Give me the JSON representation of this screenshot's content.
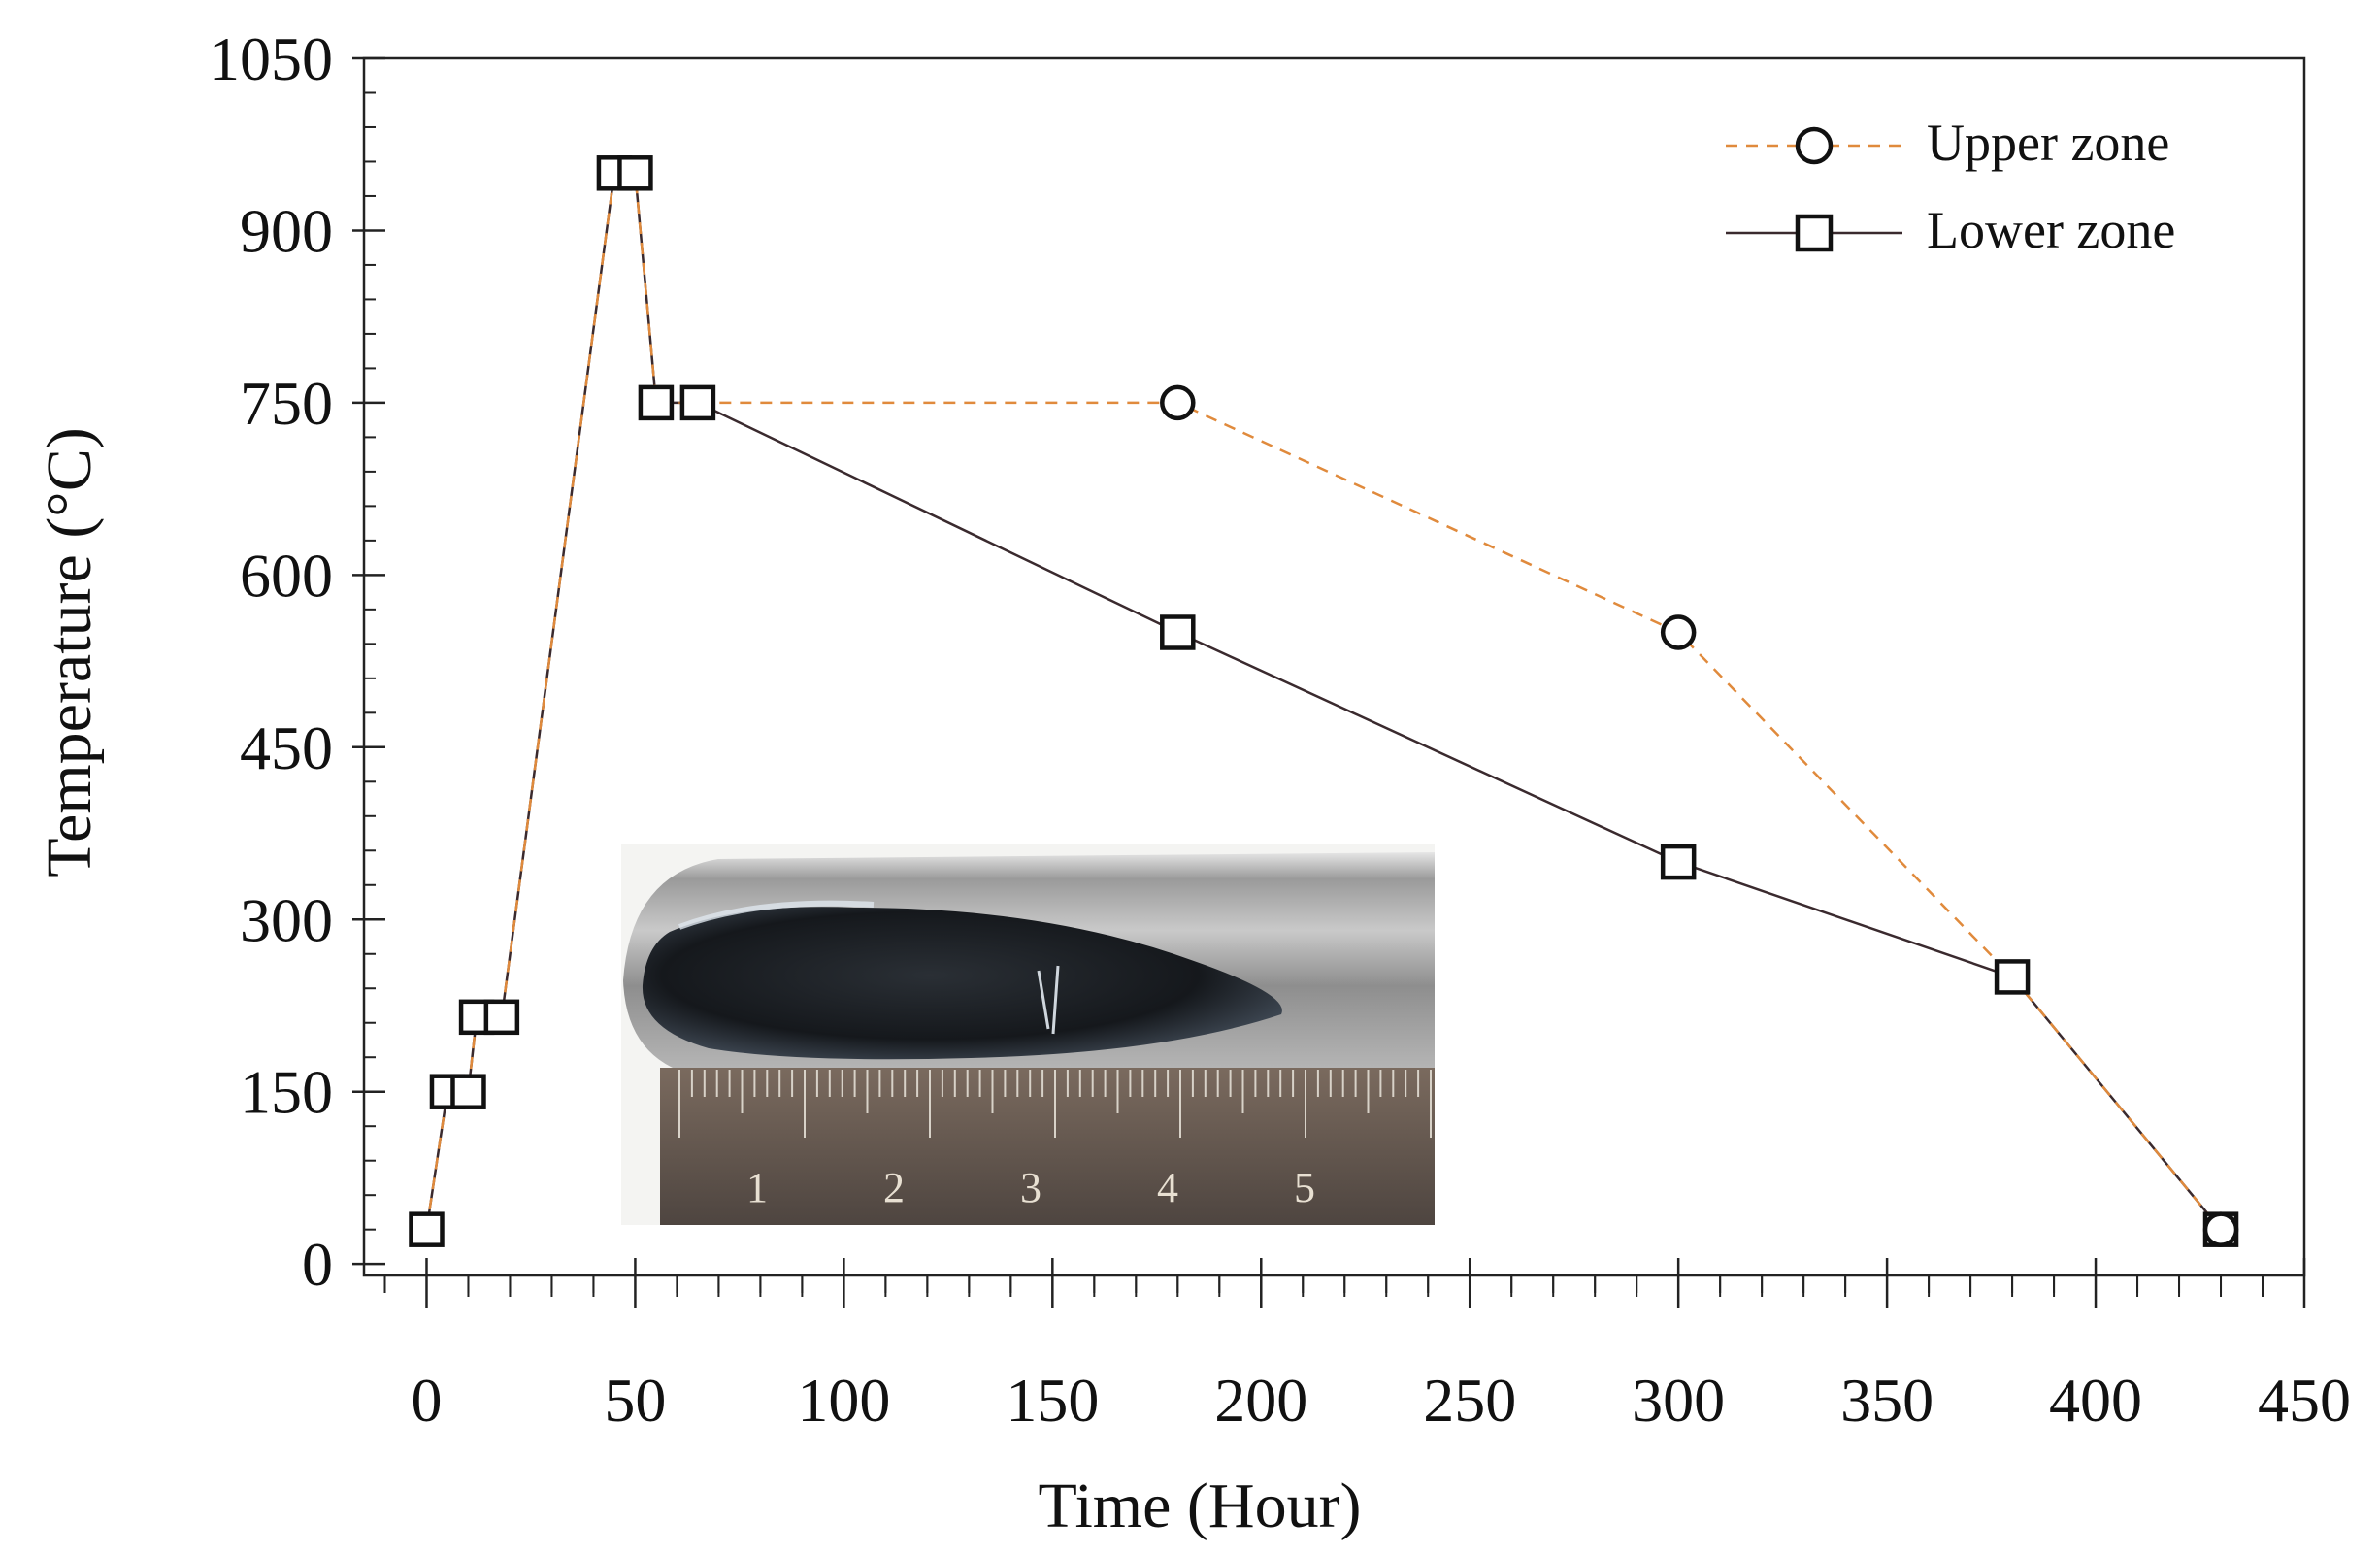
{
  "chart_data": {
    "type": "line",
    "xlabel": "Time (Hour)",
    "ylabel": "Temperature (°C)",
    "xlim": [
      -15,
      450
    ],
    "ylim": [
      -10,
      1050
    ],
    "xticks": [
      0,
      50,
      100,
      150,
      200,
      250,
      300,
      350,
      400,
      450
    ],
    "yticks": [
      0,
      150,
      300,
      450,
      600,
      750,
      900,
      1050
    ],
    "xtick_labels": [
      "0",
      "50",
      "100",
      "150",
      "200",
      "250",
      "300",
      "350",
      "400",
      "450"
    ],
    "ytick_labels": [
      "0",
      "150",
      "300",
      "450",
      "600",
      "750",
      "900",
      "1050"
    ],
    "legend_position": "top-right",
    "series": [
      {
        "name": "Upper zone",
        "color": "#e08a3c",
        "line_style": "dashed",
        "marker": "circle",
        "points": [
          [
            0,
            30
          ],
          [
            5,
            150
          ],
          [
            10,
            150
          ],
          [
            12,
            215
          ],
          [
            18,
            215
          ],
          [
            45,
            950
          ],
          [
            50,
            950
          ],
          [
            55,
            750
          ],
          [
            65,
            750
          ],
          [
            180,
            750
          ],
          [
            300,
            550
          ],
          [
            380,
            250
          ],
          [
            430,
            30
          ]
        ],
        "marked_indices": [
          9,
          10,
          12
        ]
      },
      {
        "name": "Lower zone",
        "color": "#3a2a2e",
        "line_style": "solid",
        "marker": "square",
        "points": [
          [
            0,
            30
          ],
          [
            5,
            150
          ],
          [
            10,
            150
          ],
          [
            12,
            215
          ],
          [
            18,
            215
          ],
          [
            45,
            950
          ],
          [
            50,
            950
          ],
          [
            55,
            750
          ],
          [
            65,
            750
          ],
          [
            180,
            550
          ],
          [
            300,
            350
          ],
          [
            380,
            250
          ],
          [
            430,
            30
          ]
        ],
        "marked_indices": [
          0,
          1,
          2,
          3,
          4,
          5,
          6,
          7,
          8,
          9,
          10,
          11,
          12
        ]
      }
    ],
    "inset_image": {
      "description_icon": "crystal-ingot-photo",
      "ruler_labels": [
        "1",
        "2",
        "3",
        "4",
        "5"
      ]
    }
  }
}
